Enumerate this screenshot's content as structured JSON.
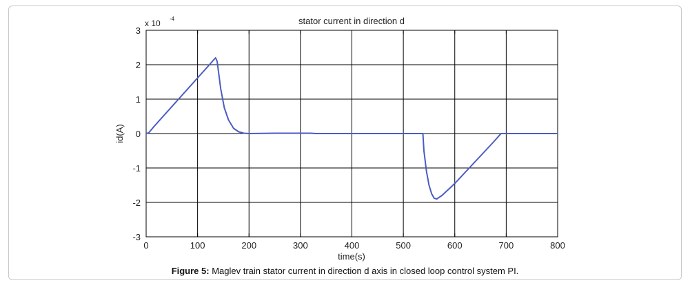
{
  "figure": {
    "caption_label": "Figure 5:",
    "caption_text": " Maglev train stator current in direction d axis in closed loop control system PI."
  },
  "chart_data": {
    "type": "line",
    "title": "stator current in direction d",
    "xlabel": "time(s)",
    "ylabel": "id(A)",
    "xlim": [
      0,
      800
    ],
    "ylim": [
      -3,
      3
    ],
    "y_multiplier": "x 10",
    "y_multiplier_exp": "-4",
    "x_ticks": [
      0,
      100,
      200,
      300,
      400,
      500,
      600,
      700,
      800
    ],
    "x_tick_labels": [
      "0",
      "100",
      "200",
      "300",
      "400",
      "500",
      "600",
      "700",
      "800"
    ],
    "y_ticks": [
      -3,
      -2,
      -1,
      0,
      1,
      2,
      3
    ],
    "y_tick_labels": [
      "-3",
      "-2",
      "-1",
      "0",
      "1",
      "2",
      "3"
    ],
    "grid": true,
    "series": [
      {
        "color": "#4a5bc4",
        "x": [
          0,
          5,
          15,
          30,
          60,
          90,
          120,
          135,
          138,
          145,
          152,
          160,
          170,
          180,
          190,
          200,
          250,
          320,
          330,
          400,
          500,
          538,
          540,
          545,
          550,
          555,
          560,
          565,
          575,
          600,
          625,
          650,
          675,
          690,
          700,
          750,
          800
        ],
        "y": [
          0.0,
          0.02,
          0.2,
          0.45,
          0.95,
          1.45,
          1.95,
          2.2,
          2.1,
          1.3,
          0.75,
          0.4,
          0.15,
          0.05,
          0.01,
          0.0,
          0.01,
          0.01,
          0.0,
          0.0,
          0.0,
          0.0,
          -0.5,
          -1.1,
          -1.5,
          -1.75,
          -1.88,
          -1.9,
          -1.8,
          -1.45,
          -1.05,
          -0.65,
          -0.25,
          0.0,
          0.0,
          0.0,
          0.0
        ]
      }
    ]
  }
}
